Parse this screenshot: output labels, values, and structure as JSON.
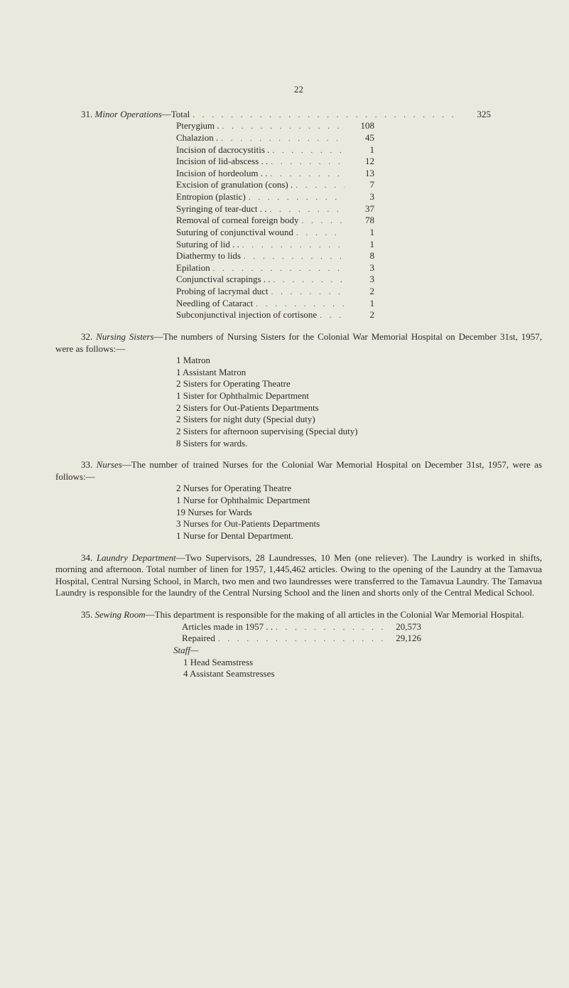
{
  "page_number": "22",
  "section31": {
    "heading_prefix": "31. ",
    "heading_italic": "Minor Operations",
    "heading_rest": "—Total",
    "total": "325",
    "items": [
      {
        "label": "Pterygium .",
        "value": "108"
      },
      {
        "label": "Chalazion .",
        "value": "45"
      },
      {
        "label": "Incision of dacrocystitis .",
        "value": "1"
      },
      {
        "label": "Incision of lid-abscess . .",
        "value": "12"
      },
      {
        "label": "Incision of hordeolum . .",
        "value": "13"
      },
      {
        "label": "Excision of granulation (cons) .",
        "value": "7"
      },
      {
        "label": "Entropion (plastic)",
        "value": "3"
      },
      {
        "label": "Syringing of tear-duct . .",
        "value": "37"
      },
      {
        "label": "Removal of corneal foreign body",
        "value": "78"
      },
      {
        "label": "Suturing of conjunctival wound",
        "value": "1"
      },
      {
        "label": "Suturing of lid . .",
        "value": "1"
      },
      {
        "label": "Diathermy to lids",
        "value": "8"
      },
      {
        "label": "Epilation",
        "value": "3"
      },
      {
        "label": "Conjunctival scrapings . .",
        "value": "3"
      },
      {
        "label": "Probing of lacrymal duct",
        "value": "2"
      },
      {
        "label": "Needling of Cataract",
        "value": "1"
      },
      {
        "label": "Subconjunctival injection of cortisone",
        "value": "2"
      }
    ]
  },
  "section32": {
    "para_prefix": "32. ",
    "para_italic": "Nursing Sisters",
    "para_rest": "—The numbers of Nursing Sisters for the Colonial War Memorial Hospital on December 31st, 1957, were as follows:—",
    "items": [
      "1 Matron",
      "1 Assistant Matron",
      "2 Sisters for Operating Theatre",
      "1 Sister for Ophthalmic Department",
      "2 Sisters for Out-Patients Departments",
      "2 Sisters for night duty (Special duty)",
      "2 Sisters for afternoon supervising (Special duty)",
      "8 Sisters for wards."
    ]
  },
  "section33": {
    "para_prefix": "33. ",
    "para_italic": "Nurses",
    "para_rest": "—The number of trained Nurses for the Colonial War Memorial Hospital on December 31st, 1957, were as follows:—",
    "items": [
      "2 Nurses for Operating Theatre",
      "1 Nurse for Ophthalmic Department",
      "19 Nurses for Wards",
      "3 Nurses for Out-Patients Departments",
      "1 Nurse for Dental Department."
    ]
  },
  "section34": {
    "para_prefix": "34. ",
    "para_italic": "Laundry Department",
    "para_rest": "—Two Supervisors, 28 Laundresses, 10 Men (one reliever). The Laundry is worked in shifts, morning and afternoon. Total number of linen for 1957, 1,445,462 articles. Owing to the opening of the Laundry at the Tamavua Hospital, Central Nursing School, in March, two men and two laundresses were transferred to the Tamavua Laundry. The Tamavua Laundry is responsible for the laundry of the Central Nursing School and the linen and shorts only of the Central Medical School."
  },
  "section35": {
    "para_prefix": "35. ",
    "para_italic": "Sewing Room",
    "para_rest": "—This department is responsible for the making of all articles in the Colonial War Memorial Hospital.",
    "lines": [
      {
        "label": "Articles made in 1957 . .",
        "value": "20,573"
      },
      {
        "label": "Repaired",
        "value": "29,126"
      }
    ],
    "staff_label": "Staff—",
    "staff_items": [
      "1 Head Seamstress",
      "4 Assistant Seamstresses"
    ]
  },
  "leader_dots": ". . . . . . . . . . . . . . . . . . . . . . . . . . . . . ."
}
